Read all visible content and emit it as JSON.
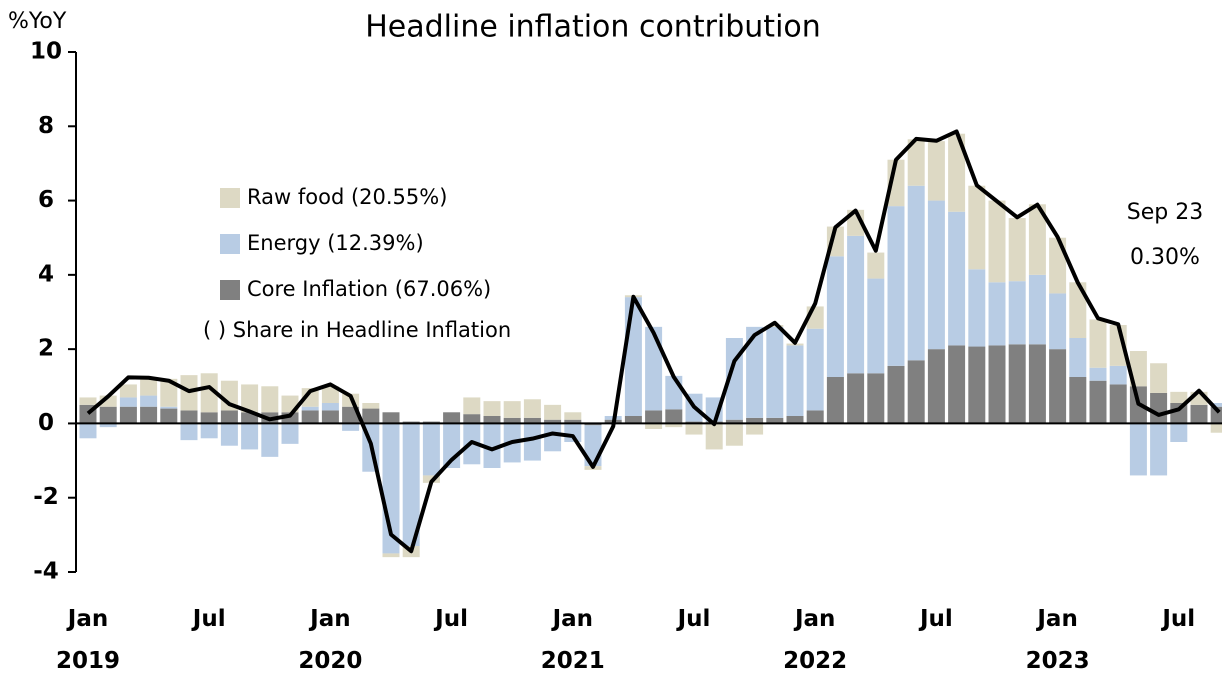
{
  "chart_data": {
    "type": "stacked_bar_line",
    "title": "Headline inflation contribution",
    "y_label": "%YoY",
    "categories": [
      "Jan\n2019",
      null,
      null,
      null,
      null,
      null,
      "Jul",
      null,
      null,
      null,
      null,
      null,
      "Jan\n2020",
      null,
      null,
      null,
      null,
      null,
      "Jul",
      null,
      null,
      null,
      null,
      null,
      "Jan\n2021",
      null,
      null,
      null,
      null,
      null,
      "Jul",
      null,
      null,
      null,
      null,
      null,
      "Jan\n2022",
      null,
      null,
      null,
      null,
      null,
      "Jul",
      null,
      null,
      null,
      null,
      null,
      "Jan\n2023",
      null,
      null,
      null,
      null,
      null,
      "Jul",
      null,
      null
    ],
    "series": [
      {
        "name": "Core Inflation (67.06%)",
        "color": "#808080",
        "values": [
          0.5,
          0.45,
          0.45,
          0.45,
          0.4,
          0.35,
          0.3,
          0.35,
          0.3,
          0.3,
          0.3,
          0.35,
          0.35,
          0.45,
          0.4,
          0.3,
          0.05,
          0.05,
          0.3,
          0.25,
          0.2,
          0.15,
          0.15,
          0.1,
          0.1,
          -0.05,
          0.1,
          0.2,
          0.35,
          0.38,
          0.05,
          0.05,
          0.1,
          0.15,
          0.15,
          0.2,
          0.35,
          1.25,
          1.35,
          1.35,
          1.55,
          1.7,
          2.0,
          2.1,
          2.07,
          2.1,
          2.13,
          2.13,
          2.0,
          1.25,
          1.15,
          1.05,
          1.0,
          0.82,
          0.55,
          0.5,
          0.45
        ]
      },
      {
        "name": "Energy (12.39%)",
        "color": "#b8cce4",
        "values": [
          -0.4,
          -0.1,
          0.25,
          0.3,
          0.05,
          -0.45,
          -0.4,
          -0.6,
          -0.7,
          -0.9,
          -0.55,
          0.1,
          0.2,
          -0.2,
          -1.3,
          -3.5,
          -3.3,
          -1.4,
          -1.2,
          -1.1,
          -1.2,
          -1.05,
          -1.0,
          -0.75,
          -0.5,
          -1.1,
          0.1,
          3.2,
          2.25,
          0.9,
          0.75,
          0.65,
          2.2,
          2.45,
          2.45,
          1.9,
          2.2,
          3.25,
          3.7,
          2.55,
          4.3,
          4.7,
          4.0,
          3.6,
          2.08,
          1.7,
          1.7,
          1.87,
          1.5,
          1.05,
          0.35,
          0.5,
          -1.4,
          -1.4,
          -0.5,
          0.0,
          0.1
        ]
      },
      {
        "name": "Raw food (20.55%)",
        "color": "#ddd9c4",
        "values": [
          0.2,
          0.3,
          0.35,
          0.5,
          0.75,
          0.95,
          1.05,
          0.8,
          0.75,
          0.7,
          0.45,
          0.5,
          0.45,
          0.35,
          0.15,
          -0.1,
          -0.3,
          -0.2,
          0.0,
          0.45,
          0.4,
          0.45,
          0.5,
          0.4,
          0.2,
          -0.1,
          0.0,
          0.05,
          -0.15,
          -0.1,
          -0.3,
          -0.7,
          -0.6,
          -0.3,
          0.05,
          0.05,
          0.6,
          0.8,
          0.7,
          0.7,
          1.25,
          1.25,
          1.6,
          2.1,
          2.25,
          2.2,
          1.7,
          1.9,
          1.5,
          1.5,
          1.3,
          1.1,
          0.95,
          0.8,
          0.3,
          0.35,
          -0.25
        ]
      },
      {
        "type": "line",
        "color": "#000000",
        "values": [
          0.27,
          0.73,
          1.24,
          1.23,
          1.15,
          0.87,
          0.98,
          0.52,
          0.32,
          0.11,
          0.21,
          0.87,
          1.05,
          0.74,
          -0.54,
          -2.99,
          -3.44,
          -1.57,
          -0.98,
          -0.5,
          -0.7,
          -0.5,
          -0.41,
          -0.27,
          -0.34,
          -1.17,
          -0.08,
          3.41,
          2.44,
          1.25,
          0.45,
          -0.02,
          1.68,
          2.38,
          2.71,
          2.17,
          3.23,
          5.28,
          5.73,
          4.65,
          7.1,
          7.66,
          7.61,
          7.86,
          6.41,
          5.98,
          5.55,
          5.89,
          5.02,
          3.79,
          2.83,
          2.67,
          0.53,
          0.23,
          0.38,
          0.88,
          0.3
        ]
      }
    ],
    "legend_note": "( ) Share in Headline Inflation",
    "legend_position": "left",
    "annotations": [
      "Sep 23",
      "0.30%"
    ],
    "ylim": [
      -4,
      10
    ],
    "yticks": [
      -4,
      -2,
      0,
      2,
      4,
      6,
      8,
      10
    ]
  }
}
